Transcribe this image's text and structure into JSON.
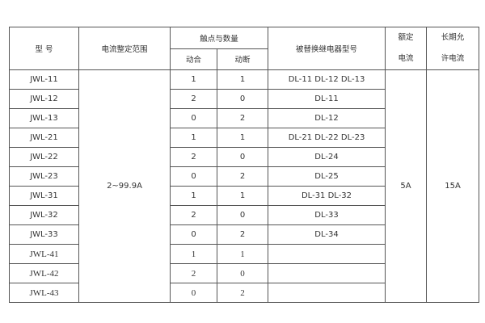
{
  "header": {
    "model": "型 号",
    "range": "电流整定范围",
    "contacts": "触点与数量",
    "make": "动合",
    "break": "动断",
    "replaces": "被替换继电器型号",
    "rated_1": "额定",
    "rated_2": "电流",
    "allowed_1": "长期允",
    "allowed_2": "许电流"
  },
  "range_value": "2~99.9A",
  "rated_value": "5A",
  "allowed_value": "15A",
  "rows": [
    {
      "model": "JWL-11",
      "make": "1",
      "break": "1",
      "replaces": "DL-11 DL-12 DL-13"
    },
    {
      "model": "JWL-12",
      "make": "2",
      "break": "0",
      "replaces": "DL-11"
    },
    {
      "model": "JWL-13",
      "make": "0",
      "break": "2",
      "replaces": "DL-12"
    },
    {
      "model": "JWL-21",
      "make": "1",
      "break": "1",
      "replaces": "DL-21 DL-22 DL-23"
    },
    {
      "model": "JWL-22",
      "make": "2",
      "break": "0",
      "replaces": "DL-24"
    },
    {
      "model": "JWL-23",
      "make": "0",
      "break": "2",
      "replaces": "DL-25"
    },
    {
      "model": "JWL-31",
      "make": "1",
      "break": "1",
      "replaces": "DL-31  DL-32"
    },
    {
      "model": "JWL-32",
      "make": "2",
      "break": "0",
      "replaces": "DL-33"
    },
    {
      "model": "JWL-33",
      "make": "0",
      "break": "2",
      "replaces": "DL-34"
    },
    {
      "model": "JWL-41",
      "make": "1",
      "break": "1",
      "replaces": ""
    },
    {
      "model": "JWL-42",
      "make": "2",
      "break": "0",
      "replaces": ""
    },
    {
      "model": "JWL-43",
      "make": "0",
      "break": "2",
      "replaces": ""
    }
  ]
}
